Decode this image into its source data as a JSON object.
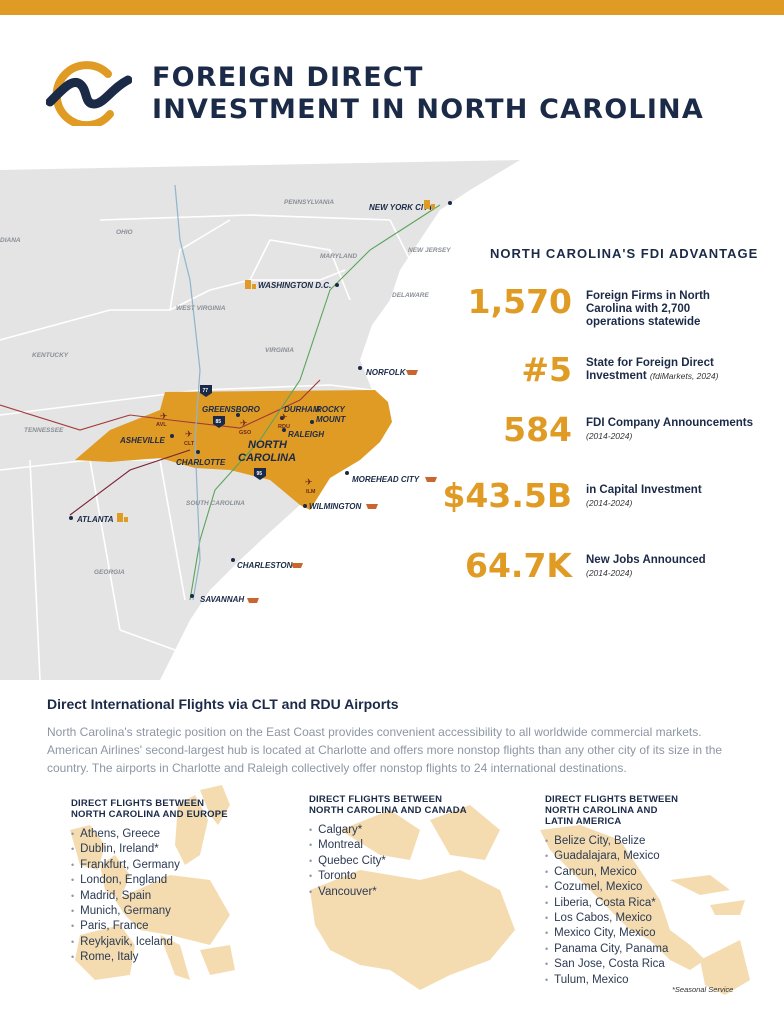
{
  "header": {
    "title_line1": "FOREIGN DIRECT",
    "title_line2": "INVESTMENT IN NORTH CAROLINA"
  },
  "colors": {
    "accent": "#e09b24",
    "navy": "#1b2a47",
    "map_tan": "#f4dcb0"
  },
  "map": {
    "states": [
      "PENNSYLVANIA",
      "OHIO",
      "MARYLAND",
      "NEW JERSEY",
      "DELAWARE",
      "WEST VIRGINIA",
      "VIRGINIA",
      "KENTUCKY",
      "TENNESSEE",
      "NORTH CAROLINA",
      "SOUTH CAROLINA",
      "GEORGIA",
      "DIANA"
    ],
    "cities": [
      "NEW YORK CITY",
      "WASHINGTON D.C.",
      "NORFOLK",
      "GREENSBORO",
      "DURHAM",
      "ROCKY MOUNT",
      "RALEIGH",
      "ASHEVILLE",
      "CHARLOTTE",
      "MOREHEAD CITY",
      "WILMINGTON",
      "ATLANTA",
      "CHARLESTON",
      "SAVANNAH"
    ],
    "airports": [
      "AVL",
      "CLT",
      "GSO",
      "RDU",
      "ILM"
    ],
    "highways": [
      "77",
      "85",
      "95"
    ]
  },
  "advantage": {
    "heading": "NORTH CAROLINA'S FDI ADVANTAGE",
    "stats": [
      {
        "value": "1,570",
        "label": "Foreign Firms in North Carolina with 2,700 operations statewide",
        "note": ""
      },
      {
        "value": "#5",
        "label": "State for Foreign Direct Investment",
        "note": "(fdiMarkets, 2024)"
      },
      {
        "value": "584",
        "label": "FDI Company Announcements",
        "note": "(2014-2024)"
      },
      {
        "value": "$43.5B",
        "label": "in Capital Investment",
        "note": "(2014-2024)"
      },
      {
        "value": "64.7K",
        "label": "New Jobs Announced",
        "note": "(2014-2024)"
      }
    ]
  },
  "flights": {
    "heading": "Direct International Flights via CLT and RDU Airports",
    "paragraph": "North Carolina's strategic position on the East Coast provides convenient accessibility to all worldwide commercial markets. American Airlines' second-largest hub is located at Charlotte and offers more nonstop flights than any other city of its size in the country. The airports in Charlotte and Raleigh collectively offer nonstop flights to 24 international destinations.",
    "regions": [
      {
        "heading_line1": "DIRECT FLIGHTS BETWEEN",
        "heading_line2": "NORTH CAROLINA AND EUROPE",
        "heading_line3": "",
        "destinations": [
          "Athens, Greece",
          "Dublin, Ireland*",
          "Frankfurt, Germany",
          "London, England",
          "Madrid, Spain",
          "Munich, Germany",
          "Paris, France",
          "Reykjavik, Iceland",
          "Rome, Italy"
        ]
      },
      {
        "heading_line1": "DIRECT FLIGHTS BETWEEN",
        "heading_line2": "NORTH CAROLINA AND CANADA",
        "heading_line3": "",
        "destinations": [
          "Calgary*",
          "Montreal",
          "Quebec City*",
          "Toronto",
          "Vancouver*"
        ]
      },
      {
        "heading_line1": "DIRECT FLIGHTS BETWEEN",
        "heading_line2": "NORTH CAROLINA AND",
        "heading_line3": "LATIN AMERICA",
        "destinations": [
          "Belize City, Belize",
          "Guadalajara, Mexico",
          "Cancun, Mexico",
          "Cozumel, Mexico",
          "Liberia, Costa Rica*",
          "Los Cabos, Mexico",
          "Mexico City, Mexico",
          "Panama City, Panama",
          "San Jose, Costa Rica",
          "Tulum, Mexico"
        ]
      }
    ],
    "seasonal_note": "*Seasonal Service"
  }
}
